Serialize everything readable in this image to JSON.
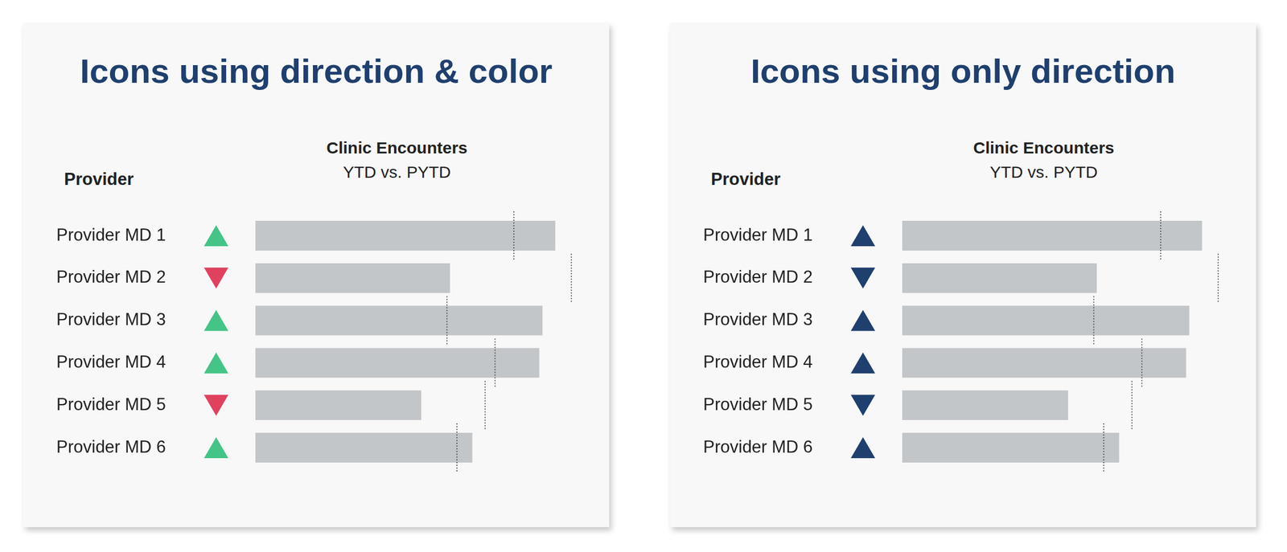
{
  "chart_data": [
    {
      "type": "bar",
      "orientation": "horizontal",
      "title": "Icons using direction & color",
      "subtitle": [
        "Clinic Encounters",
        "YTD vs. PYTD"
      ],
      "y_label": "Provider",
      "categories": [
        "Provider MD 1",
        "Provider MD 2",
        "Provider MD 3",
        "Provider MD 4",
        "Provider MD 5",
        "Provider MD 6"
      ],
      "series": [
        {
          "name": "YTD",
          "type": "bar",
          "color": "#c3c6c9",
          "values": [
            94,
            61,
            90,
            89,
            52,
            68
          ]
        },
        {
          "name": "PYTD",
          "type": "target",
          "line_style": "dotted",
          "color": "#333333",
          "values": [
            81,
            99,
            60,
            75,
            72,
            63
          ]
        }
      ],
      "icons": {
        "marker": "triangle",
        "colors": [
          "#45c487",
          "#e0415f",
          "#45c487",
          "#45c487",
          "#e0415f",
          "#45c487"
        ]
      },
      "xlim": [
        0,
        100
      ],
      "grid": false,
      "tick_labels": "y",
      "legend": "none"
    },
    {
      "type": "bar",
      "orientation": "horizontal",
      "title": "Icons using only direction",
      "subtitle": [
        "Clinic Encounters",
        "YTD vs. PYTD"
      ],
      "y_label": "Provider",
      "categories": [
        "Provider MD 1",
        "Provider MD 2",
        "Provider MD 3",
        "Provider MD 4",
        "Provider MD 5",
        "Provider MD 6"
      ],
      "series": [
        {
          "name": "YTD",
          "type": "bar",
          "color": "#c3c6c9",
          "values": [
            94,
            61,
            90,
            89,
            52,
            68
          ]
        },
        {
          "name": "PYTD",
          "type": "target",
          "line_style": "dotted",
          "color": "#333333",
          "values": [
            81,
            99,
            60,
            75,
            72,
            63
          ]
        }
      ],
      "icons": {
        "marker": "triangle",
        "colors": [
          "#1f3f6e",
          "#1f3f6e",
          "#1f3f6e",
          "#1f3f6e",
          "#1f3f6e",
          "#1f3f6e"
        ]
      },
      "xlim": [
        0,
        100
      ],
      "grid": false,
      "tick_labels": "y",
      "legend": "none"
    }
  ]
}
